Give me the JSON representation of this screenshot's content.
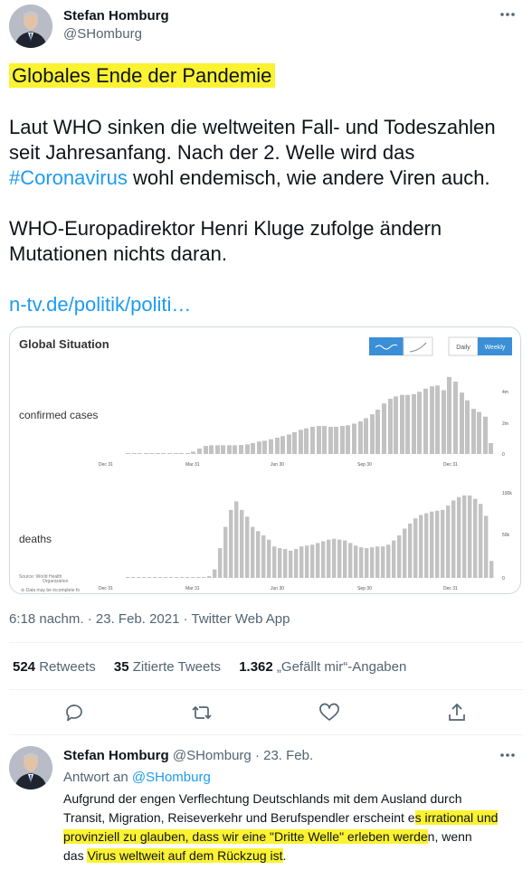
{
  "tweet": {
    "author_name": "Stefan Homburg",
    "author_handle": "@SHomburg",
    "headline": "Globales Ende der Pandemie",
    "para1_part1": "Laut WHO sinken die weltweiten Fall- und Todeszahlen seit Jahresanfang. Nach der 2. Welle wird das ",
    "hashtag": "#Coronavirus",
    "para1_part2": " wohl endemisch, wie andere Viren auch.",
    "para2": "WHO-Europadirektor Henri Kluge zufolge ändern Mutationen nichts daran.",
    "link": "n-tv.de/politik/politi…",
    "meta": "6:18 nachm. · 23. Feb. 2021 · Twitter Web App",
    "retweets_count": "524",
    "retweets_label": "Retweets",
    "quotes_count": "35",
    "quotes_label": "Zitierte Tweets",
    "likes_count": "1.362",
    "likes_label": "„Gefällt mir“-Angaben"
  },
  "card": {
    "title": "Global Situation",
    "daily_label": "Daily",
    "weekly_label": "Weekly",
    "source_line1": "Source: World Health",
    "source_line2": "Organization",
    "note": "⊘ Data may be incomplete fo"
  },
  "chart_data": [
    {
      "type": "bar",
      "title": "confirmed cases",
      "x_tick_labels": [
        "Dec 31",
        "Mar 31",
        "Jun 30",
        "Sep 30",
        "Dec 31"
      ],
      "y_tick_labels": [
        "4m",
        "2m",
        "0"
      ],
      "ylim": [
        0,
        5000000
      ],
      "values": [
        0,
        0,
        0,
        0,
        0,
        0,
        0,
        0,
        0,
        2000,
        40000,
        150000,
        350000,
        520000,
        560000,
        560000,
        560000,
        560000,
        560000,
        580000,
        620000,
        700000,
        800000,
        850000,
        950000,
        1050000,
        1150000,
        1250000,
        1400000,
        1550000,
        1650000,
        1750000,
        1800000,
        1800000,
        1750000,
        1750000,
        1800000,
        1850000,
        1950000,
        2100000,
        2300000,
        2550000,
        2850000,
        3250000,
        3550000,
        3700000,
        3800000,
        3800000,
        3850000,
        4000000,
        4200000,
        4350000,
        4400000,
        4100000,
        4950000,
        4650000,
        3950000,
        3450000,
        2900000,
        2700000,
        2400000,
        700000
      ]
    },
    {
      "type": "bar",
      "title": "deaths",
      "x_tick_labels": [
        "Dec 31",
        "Mar 31",
        "Jun 30",
        "Sep 30",
        "Dec 31"
      ],
      "y_tick_labels": [
        "100k",
        "50k",
        "0"
      ],
      "ylim": [
        0,
        100000
      ],
      "values": [
        0,
        0,
        0,
        0,
        0,
        0,
        0,
        0,
        0,
        0,
        0,
        0,
        0,
        0,
        0,
        2000,
        10000,
        35000,
        60000,
        80000,
        90000,
        80000,
        72000,
        60000,
        55000,
        50000,
        45000,
        37000,
        35000,
        34000,
        32000,
        34000,
        37000,
        38000,
        39000,
        41000,
        43000,
        45000,
        46000,
        45000,
        44000,
        41000,
        38000,
        36000,
        35000,
        36000,
        37000,
        37000,
        39000,
        44000,
        50000,
        58000,
        64000,
        70000,
        74000,
        76000,
        78000,
        79000,
        80000,
        85000,
        91000,
        95000,
        97000,
        97000,
        93000,
        87000,
        73000,
        20000
      ]
    }
  ],
  "reply": {
    "author_name": "Stefan Homburg",
    "author_handle": "@SHomburg",
    "date": "· 23. Feb.",
    "reply_to_prefix": "Antwort an ",
    "reply_to_handle": "@SHomburg",
    "line1": "Aufgrund der engen Verflechtung Deutschlands mit dem Ausland durch",
    "line2_a": "Transit, Migration, Reiseverkehr und Berufspendler erscheint e",
    "line2_b": "s irrational und",
    "line3_a": "provinziell zu glauben, dass wir eine \"Dritte Welle\" erleben werde",
    "line3_b": "n, wenn",
    "line4_a": "das ",
    "line4_b": "Virus weltweit auf dem Rückzug ist",
    "line4_c": "."
  }
}
